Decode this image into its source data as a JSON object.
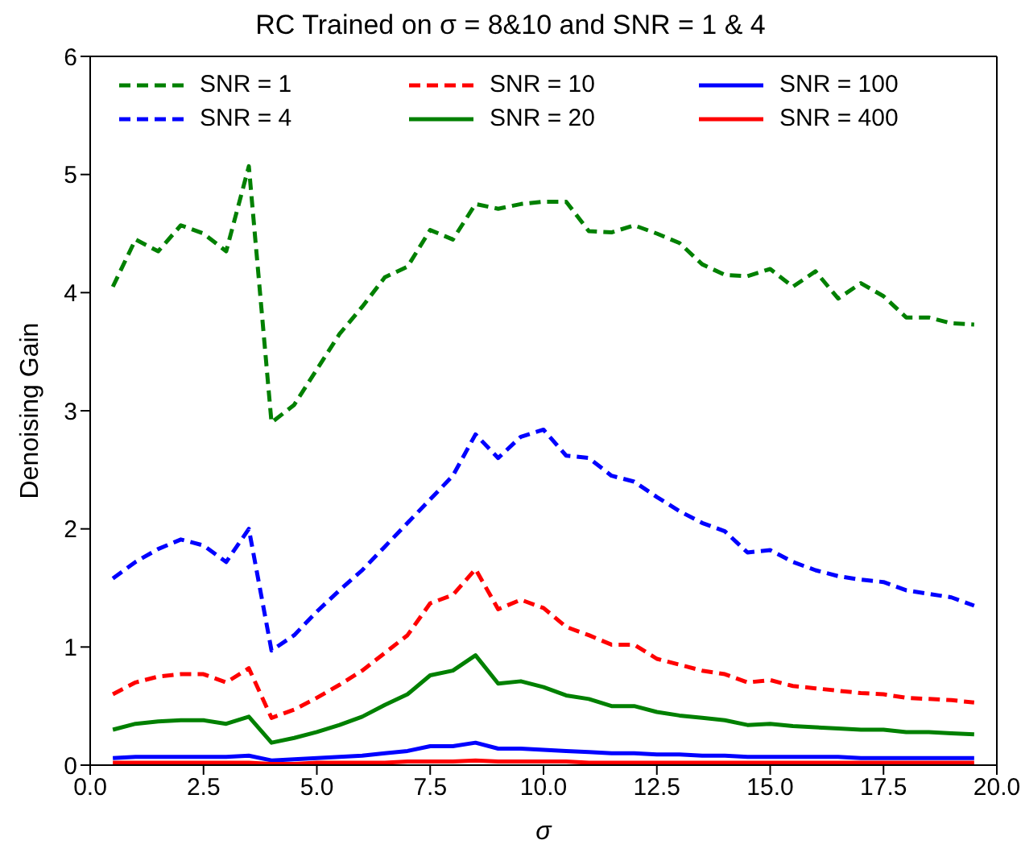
{
  "chart_data": {
    "type": "line",
    "title": "RC Trained on σ = 8&10 and SNR = 1 & 4",
    "xlabel": "σ",
    "ylabel": "Denoising Gain",
    "x": [
      0.5,
      1.0,
      1.5,
      2.0,
      2.5,
      3.0,
      3.5,
      4.0,
      4.5,
      5.0,
      5.5,
      6.0,
      6.5,
      7.0,
      7.5,
      8.0,
      8.5,
      9.0,
      9.5,
      10.0,
      10.5,
      11.0,
      11.5,
      12.0,
      12.5,
      13.0,
      13.5,
      14.0,
      14.5,
      15.0,
      15.5,
      16.0,
      16.5,
      17.0,
      17.5,
      18.0,
      18.5,
      19.0,
      19.5
    ],
    "series": [
      {
        "name": "SNR = 1",
        "color": "#008000",
        "line_style": "dashed",
        "values": [
          4.05,
          4.45,
          4.35,
          4.57,
          4.5,
          4.35,
          5.07,
          2.9,
          3.05,
          3.35,
          3.65,
          3.88,
          4.13,
          4.22,
          4.53,
          4.45,
          4.75,
          4.71,
          4.75,
          4.77,
          4.77,
          4.52,
          4.51,
          4.57,
          4.5,
          4.42,
          4.24,
          4.15,
          4.14,
          4.2,
          4.05,
          4.18,
          3.95,
          4.08,
          3.97,
          3.79,
          3.79,
          3.74,
          3.73
        ]
      },
      {
        "name": "SNR = 4",
        "color": "#0000ff",
        "line_style": "dashed",
        "values": [
          1.58,
          1.72,
          1.83,
          1.91,
          1.86,
          1.72,
          2.0,
          0.97,
          1.1,
          1.3,
          1.48,
          1.65,
          1.85,
          2.05,
          2.25,
          2.45,
          2.8,
          2.6,
          2.78,
          2.84,
          2.62,
          2.6,
          2.45,
          2.4,
          2.27,
          2.15,
          2.05,
          1.98,
          1.8,
          1.82,
          1.72,
          1.65,
          1.6,
          1.57,
          1.55,
          1.48,
          1.45,
          1.42,
          1.35
        ]
      },
      {
        "name": "SNR = 10",
        "color": "#ff0000",
        "line_style": "dashed",
        "values": [
          0.6,
          0.7,
          0.75,
          0.77,
          0.77,
          0.7,
          0.82,
          0.4,
          0.47,
          0.57,
          0.68,
          0.8,
          0.95,
          1.1,
          1.37,
          1.44,
          1.66,
          1.32,
          1.4,
          1.33,
          1.17,
          1.1,
          1.02,
          1.02,
          0.9,
          0.85,
          0.8,
          0.77,
          0.7,
          0.72,
          0.67,
          0.65,
          0.63,
          0.61,
          0.6,
          0.57,
          0.56,
          0.55,
          0.53
        ]
      },
      {
        "name": "SNR = 20",
        "color": "#008000",
        "line_style": "solid",
        "values": [
          0.3,
          0.35,
          0.37,
          0.38,
          0.38,
          0.35,
          0.41,
          0.19,
          0.23,
          0.28,
          0.34,
          0.41,
          0.51,
          0.6,
          0.76,
          0.8,
          0.93,
          0.69,
          0.71,
          0.66,
          0.59,
          0.56,
          0.5,
          0.5,
          0.45,
          0.42,
          0.4,
          0.38,
          0.34,
          0.35,
          0.33,
          0.32,
          0.31,
          0.3,
          0.3,
          0.28,
          0.28,
          0.27,
          0.26
        ]
      },
      {
        "name": "SNR = 100",
        "color": "#0000ff",
        "line_style": "solid",
        "values": [
          0.06,
          0.07,
          0.07,
          0.07,
          0.07,
          0.07,
          0.08,
          0.04,
          0.05,
          0.06,
          0.07,
          0.08,
          0.1,
          0.12,
          0.16,
          0.16,
          0.19,
          0.14,
          0.14,
          0.13,
          0.12,
          0.11,
          0.1,
          0.1,
          0.09,
          0.09,
          0.08,
          0.08,
          0.07,
          0.07,
          0.07,
          0.07,
          0.07,
          0.06,
          0.06,
          0.06,
          0.06,
          0.06,
          0.06
        ]
      },
      {
        "name": "SNR = 400",
        "color": "#ff0000",
        "line_style": "solid",
        "values": [
          0.02,
          0.02,
          0.02,
          0.02,
          0.02,
          0.02,
          0.02,
          0.01,
          0.01,
          0.02,
          0.02,
          0.02,
          0.02,
          0.03,
          0.03,
          0.03,
          0.04,
          0.03,
          0.03,
          0.03,
          0.03,
          0.02,
          0.02,
          0.02,
          0.02,
          0.02,
          0.02,
          0.02,
          0.02,
          0.02,
          0.02,
          0.02,
          0.02,
          0.02,
          0.02,
          0.02,
          0.02,
          0.02,
          0.02
        ]
      }
    ],
    "xlim": [
      0,
      20
    ],
    "xticks": [
      {
        "value": 0,
        "label": "0.0"
      },
      {
        "value": 2.5,
        "label": "2.5"
      },
      {
        "value": 5,
        "label": "5.0"
      },
      {
        "value": 7.5,
        "label": "7.5"
      },
      {
        "value": 10,
        "label": "10.0"
      },
      {
        "value": 12.5,
        "label": "12.5"
      },
      {
        "value": 15,
        "label": "15.0"
      },
      {
        "value": 17.5,
        "label": "17.5"
      },
      {
        "value": 20,
        "label": "20.0"
      }
    ],
    "ylim": [
      0,
      6
    ],
    "yticks": [
      0,
      1,
      2,
      3,
      4,
      5,
      6
    ],
    "grid": false,
    "legend": "top",
    "marker": "none"
  }
}
